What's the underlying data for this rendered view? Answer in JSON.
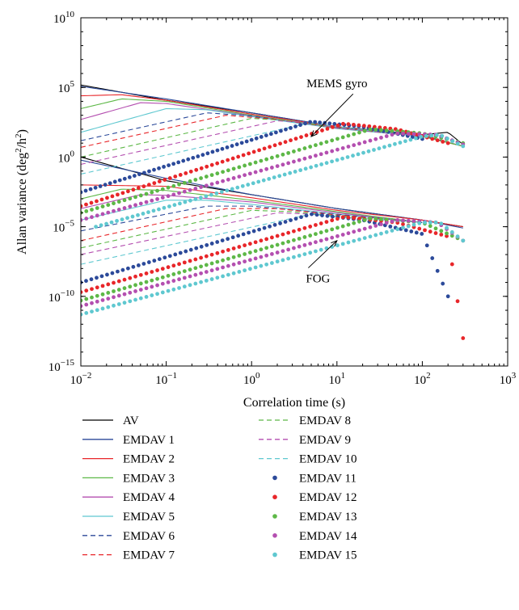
{
  "chart_data": {
    "type": "line",
    "xscale": "log",
    "yscale": "log",
    "xlim": [
      0.01,
      1000
    ],
    "ylim": [
      1e-15,
      10000000000.0
    ],
    "xlabel": "Correlation time (s)",
    "ylabel_parts": {
      "main": "Allan variance (deg",
      "sup1": "2",
      "mid": "/h",
      "sup2": "2",
      "end": ")"
    },
    "x_ticks": [
      {
        "value": 0.01,
        "base": "10",
        "exp": "−2"
      },
      {
        "value": 0.1,
        "base": "10",
        "exp": "−1"
      },
      {
        "value": 1,
        "base": "10",
        "exp": "0"
      },
      {
        "value": 10,
        "base": "10",
        "exp": "1"
      },
      {
        "value": 100,
        "base": "10",
        "exp": "2"
      },
      {
        "value": 1000,
        "base": "10",
        "exp": "3"
      }
    ],
    "y_ticks": [
      {
        "value": 1e-15,
        "base": "10",
        "exp": "−15"
      },
      {
        "value": 1e-10,
        "base": "10",
        "exp": "−10"
      },
      {
        "value": 1e-05,
        "base": "10",
        "exp": "−5"
      },
      {
        "value": 1,
        "base": "10",
        "exp": "0"
      },
      {
        "value": 100000.0,
        "base": "10",
        "exp": "5"
      },
      {
        "value": 10000000000.0,
        "base": "10",
        "exp": "10"
      }
    ],
    "annotations": [
      {
        "text": "MEMS gyro",
        "x": 10,
        "y": 100000.0,
        "arrow_to": [
          5,
          30
        ]
      },
      {
        "text": "FOG",
        "x": 6,
        "y": 1e-09,
        "arrow_to": [
          10,
          1e-06
        ]
      }
    ],
    "series": [
      {
        "name": "AV",
        "color": "#000000",
        "style": "solid",
        "mems": [
          [
            0.01,
            150000
          ],
          [
            0.1,
            12000
          ],
          [
            1,
            1500
          ],
          [
            10,
            150
          ],
          [
            100,
            40
          ],
          [
            200,
            60
          ],
          [
            300,
            8
          ]
        ],
        "fog": [
          [
            0.01,
            1
          ],
          [
            0.1,
            0.02
          ],
          [
            1,
            0.002
          ],
          [
            10,
            0.0002
          ],
          [
            100,
            3e-05
          ],
          [
            300,
            1e-05
          ]
        ]
      },
      {
        "name": "EMDAV 1",
        "color": "#2c4a9a",
        "style": "solid",
        "mems": [
          [
            0.01,
            120000
          ],
          [
            0.1,
            15000
          ],
          [
            1,
            1500
          ],
          [
            10,
            150
          ],
          [
            100,
            35
          ],
          [
            300,
            6
          ]
        ],
        "fog": [
          [
            0.01,
            0.6
          ],
          [
            0.1,
            0.03
          ],
          [
            1,
            0.002
          ],
          [
            10,
            0.0002
          ],
          [
            100,
            3e-05
          ],
          [
            300,
            8e-06
          ]
        ]
      },
      {
        "name": "EMDAV 2",
        "color": "#e8262a",
        "style": "solid",
        "mems": [
          [
            0.01,
            25000
          ],
          [
            0.03,
            30000
          ],
          [
            0.1,
            12000
          ],
          [
            1,
            1200
          ],
          [
            10,
            150
          ],
          [
            100,
            30
          ],
          [
            300,
            6
          ]
        ],
        "fog": [
          [
            0.01,
            0.01
          ],
          [
            0.1,
            0.008
          ],
          [
            1,
            0.0012
          ],
          [
            10,
            0.00015
          ],
          [
            100,
            3e-05
          ],
          [
            300,
            1e-05
          ]
        ]
      },
      {
        "name": "EMDAV 3",
        "color": "#5db847",
        "style": "solid",
        "mems": [
          [
            0.01,
            3000
          ],
          [
            0.03,
            15000
          ],
          [
            0.1,
            10000
          ],
          [
            1,
            1000
          ],
          [
            10,
            130
          ],
          [
            100,
            30
          ],
          [
            300,
            6
          ]
        ],
        "fog": [
          [
            0.01,
            0.001
          ],
          [
            0.03,
            0.005
          ],
          [
            0.1,
            0.004
          ],
          [
            1,
            0.0008
          ],
          [
            10,
            0.00012
          ],
          [
            100,
            2e-05
          ]
        ]
      },
      {
        "name": "EMDAV 4",
        "color": "#b44fb0",
        "style": "solid",
        "mems": [
          [
            0.01,
            500
          ],
          [
            0.05,
            8000
          ],
          [
            0.1,
            7000
          ],
          [
            1,
            900
          ],
          [
            10,
            120
          ],
          [
            100,
            30
          ]
        ],
        "fog": [
          [
            0.01,
            0.0002
          ],
          [
            0.05,
            0.002
          ],
          [
            0.1,
            0.0018
          ],
          [
            1,
            0.0006
          ],
          [
            10,
            0.0001
          ],
          [
            100,
            2e-05
          ]
        ]
      },
      {
        "name": "EMDAV 5",
        "color": "#5fc8d0",
        "style": "solid",
        "mems": [
          [
            0.01,
            60
          ],
          [
            0.1,
            3000
          ],
          [
            0.3,
            2500
          ],
          [
            1,
            800
          ],
          [
            10,
            110
          ],
          [
            100,
            30
          ]
        ],
        "fog": [
          [
            0.01,
            3e-05
          ],
          [
            0.1,
            0.0008
          ],
          [
            0.3,
            0.0008
          ],
          [
            1,
            0.0004
          ],
          [
            10,
            8e-05
          ],
          [
            100,
            2e-05
          ]
        ]
      },
      {
        "name": "EMDAV 6",
        "color": "#2c4a9a",
        "style": "dashed",
        "mems": [
          [
            0.01,
            15
          ],
          [
            0.3,
            1500
          ],
          [
            1,
            900
          ],
          [
            10,
            130
          ],
          [
            100,
            30
          ]
        ],
        "fog": [
          [
            0.01,
            5e-06
          ],
          [
            0.3,
            0.0003
          ],
          [
            1,
            0.0003
          ],
          [
            10,
            8e-05
          ],
          [
            100,
            2e-05
          ]
        ]
      },
      {
        "name": "EMDAV 7",
        "color": "#e8262a",
        "style": "dashed",
        "mems": [
          [
            0.01,
            5
          ],
          [
            0.5,
            1000
          ],
          [
            2,
            500
          ],
          [
            10,
            120
          ],
          [
            100,
            30
          ]
        ],
        "fog": [
          [
            0.01,
            1e-06
          ],
          [
            0.5,
            0.0002
          ],
          [
            2,
            0.0002
          ],
          [
            10,
            7e-05
          ],
          [
            100,
            2e-05
          ]
        ]
      },
      {
        "name": "EMDAV 8",
        "color": "#5db847",
        "style": "dashed",
        "mems": [
          [
            0.01,
            1
          ],
          [
            1,
            600
          ],
          [
            3,
            400
          ],
          [
            10,
            120
          ],
          [
            100,
            30
          ]
        ],
        "fog": [
          [
            0.01,
            3e-07
          ],
          [
            1,
            0.00015
          ],
          [
            3,
            0.00012
          ],
          [
            10,
            6e-05
          ],
          [
            100,
            2e-05
          ]
        ]
      },
      {
        "name": "EMDAV 9",
        "color": "#b44fb0",
        "style": "dashed",
        "mems": [
          [
            0.01,
            0.3
          ],
          [
            2,
            400
          ],
          [
            5,
            300
          ],
          [
            10,
            120
          ],
          [
            100,
            30
          ]
        ],
        "fog": [
          [
            0.01,
            1e-07
          ],
          [
            2,
            0.0001
          ],
          [
            5,
            8e-05
          ],
          [
            10,
            5e-05
          ],
          [
            100,
            2e-05
          ]
        ]
      },
      {
        "name": "EMDAV 10",
        "color": "#5fc8d0",
        "style": "dashed",
        "mems": [
          [
            0.01,
            0.06
          ],
          [
            5,
            300
          ],
          [
            10,
            150
          ],
          [
            100,
            30
          ]
        ],
        "fog": [
          [
            0.01,
            2e-08
          ],
          [
            5,
            8e-05
          ],
          [
            10,
            5e-05
          ],
          [
            100,
            2e-05
          ]
        ]
      },
      {
        "name": "EMDAV 11",
        "color": "#2c4a9a",
        "style": "dots",
        "mems": [
          [
            0.01,
            0.003
          ],
          [
            5,
            350
          ],
          [
            20,
            150
          ],
          [
            100,
            20
          ]
        ],
        "fog": [
          [
            0.01,
            1e-09
          ],
          [
            5,
            8e-05
          ],
          [
            20,
            3e-05
          ],
          [
            100,
            3e-06
          ],
          [
            200,
            1e-10
          ]
        ]
      },
      {
        "name": "EMDAV 12",
        "color": "#e8262a",
        "style": "dots",
        "mems": [
          [
            0.01,
            0.0003
          ],
          [
            12,
            250
          ],
          [
            50,
            100
          ],
          [
            200,
            10
          ]
        ],
        "fog": [
          [
            0.01,
            2e-10
          ],
          [
            12,
            5e-05
          ],
          [
            50,
            2e-05
          ],
          [
            200,
            2e-06
          ],
          [
            300,
            1e-13
          ]
        ]
      },
      {
        "name": "EMDAV 13",
        "color": "#5db847",
        "style": "dots",
        "mems": [
          [
            0.01,
            0.0001
          ],
          [
            25,
            100
          ],
          [
            100,
            50
          ],
          [
            300,
            10
          ]
        ],
        "fog": [
          [
            0.01,
            5e-11
          ],
          [
            25,
            4e-05
          ],
          [
            100,
            2e-05
          ],
          [
            300,
            1e-06
          ]
        ]
      },
      {
        "name": "EMDAV 14",
        "color": "#b44fb0",
        "style": "dots",
        "mems": [
          [
            0.01,
            3e-05
          ],
          [
            50,
            50
          ],
          [
            150,
            40
          ],
          [
            300,
            8
          ]
        ],
        "fog": [
          [
            0.01,
            2e-11
          ],
          [
            50,
            3e-05
          ],
          [
            150,
            2e-05
          ],
          [
            300,
            1e-06
          ]
        ]
      },
      {
        "name": "EMDAV 15",
        "color": "#5fc8d0",
        "style": "dots",
        "mems": [
          [
            0.015,
            1e-05
          ],
          [
            100,
            30
          ],
          [
            160,
            40
          ],
          [
            300,
            6
          ]
        ],
        "fog": [
          [
            0.01,
            5e-12
          ],
          [
            100,
            2e-05
          ],
          [
            160,
            2e-05
          ],
          [
            300,
            1e-06
          ]
        ]
      }
    ]
  }
}
